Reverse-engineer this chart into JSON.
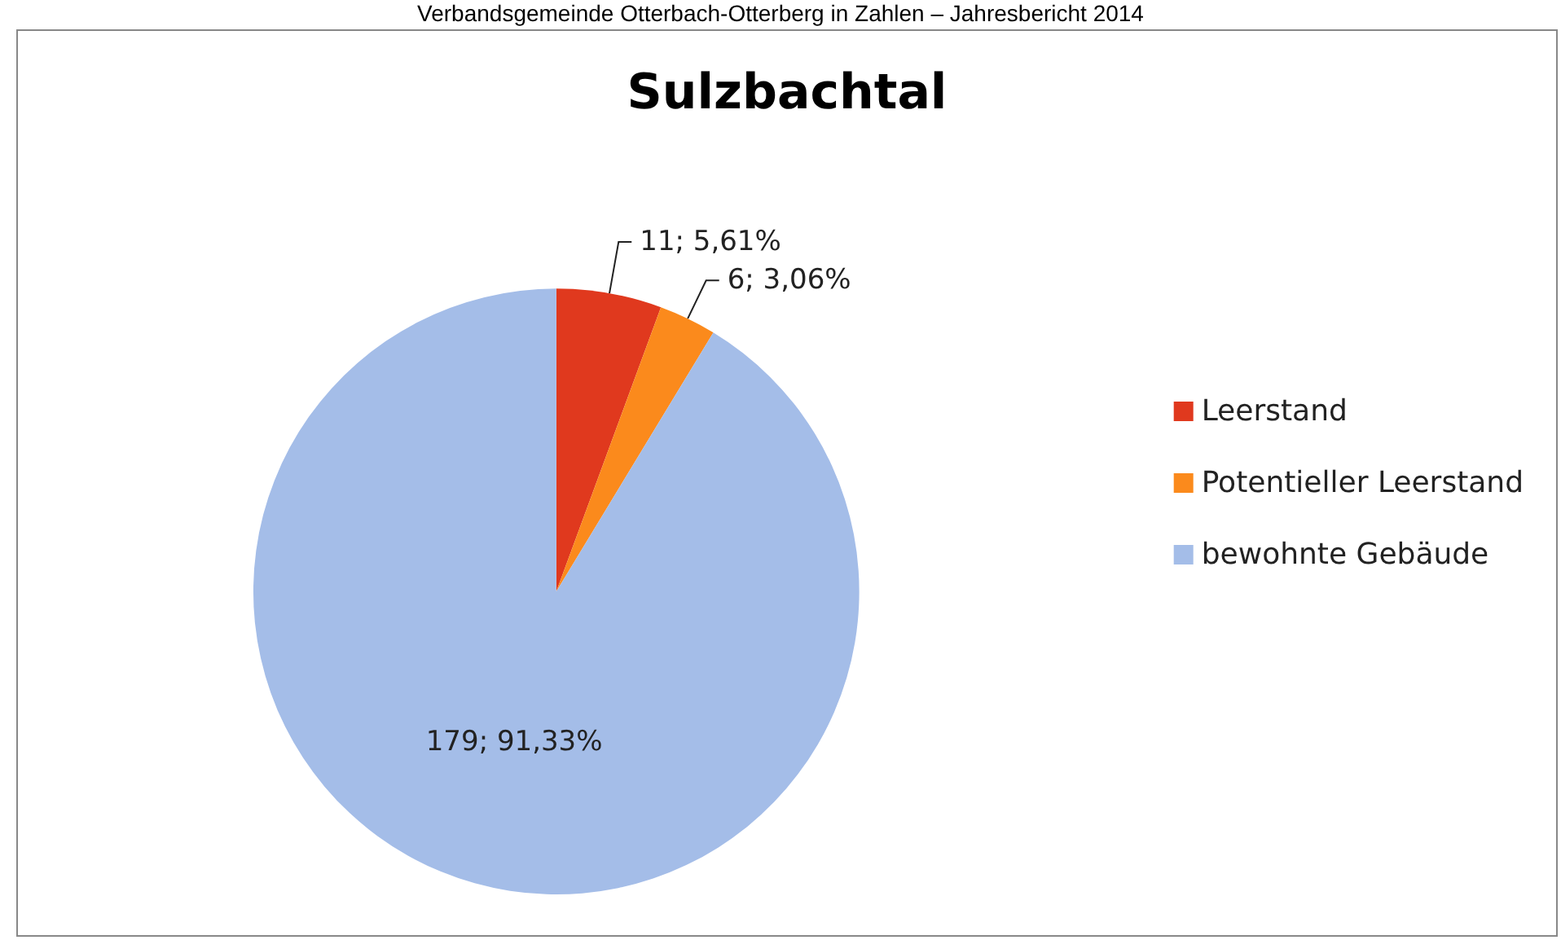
{
  "chart_data": {
    "type": "pie",
    "title": "Sulzbachtal",
    "annotations": [
      "Verbandsgemeinde Otterbach-Otterberg in Zahlen – Jahresbericht 2014"
    ],
    "categories": [
      "Leerstand",
      "Potentieller Leerstand",
      "bewohnte Gebäude"
    ],
    "values": [
      11,
      6,
      179
    ],
    "value_labels": [
      "11; 5,61%",
      "6; 3,06%",
      "179; 91,33%"
    ],
    "colors": [
      "#e0391e",
      "#fb8a1c",
      "#a4bde8"
    ],
    "legend": "right"
  }
}
